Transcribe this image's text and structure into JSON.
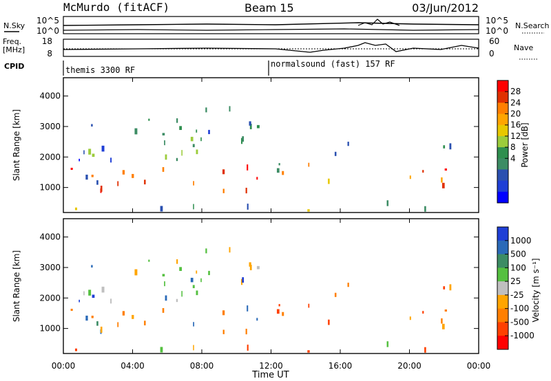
{
  "header": {
    "station": "McMurdo (fitACF)",
    "beam": "Beam 15",
    "date": "03/Jun/2012"
  },
  "noise_panel": {
    "left_label": "N.Sky",
    "right_label": "N.Search",
    "left_ticks": [
      "10^5",
      "10^0"
    ],
    "right_ticks": [
      "10^5",
      "10^0"
    ]
  },
  "freq_panel": {
    "left_label_line1": "Freq.",
    "left_label_line2": "[MHz]",
    "right_label": "Nave",
    "left_ticks": [
      "18",
      "8"
    ],
    "right_ticks": [
      "60",
      "0"
    ]
  },
  "cpid": {
    "label": "CPID",
    "segments": [
      {
        "text": "themis 3300 RF",
        "start_hour": 0
      },
      {
        "text": "normalsound (fast) 157 RF",
        "start_hour": 12
      }
    ]
  },
  "time_axis": {
    "label": "Time UT",
    "ticks": [
      "00:00",
      "04:00",
      "08:00",
      "12:00",
      "16:00",
      "20:00",
      "00:00"
    ],
    "tick_hours": [
      0,
      4,
      8,
      12,
      16,
      20,
      24
    ]
  },
  "chart_data": [
    {
      "type": "heatmap",
      "title": "",
      "xlabel": "Time UT",
      "ylabel": "Slant Range [km]",
      "xlim_hours": [
        0,
        24
      ],
      "ylim": [
        180,
        4600
      ],
      "yticks": [
        "1000",
        "2000",
        "3000",
        "4000"
      ],
      "colorbar": {
        "label": "Power [dB]",
        "ticks": [
          "28",
          "24",
          "20",
          "16",
          "12",
          "8",
          "4"
        ],
        "colors": [
          "#ff0000",
          "#e03000",
          "#ff7f00",
          "#ffa500",
          "#e8c800",
          "#9ccc3c",
          "#2f8f4f",
          "#3c8c64",
          "#2a50b0",
          "#1f3fd6",
          "#0000ff"
        ]
      }
    },
    {
      "type": "heatmap",
      "title": "",
      "xlabel": "Time UT",
      "ylabel": "Slant Range [km]",
      "xlim_hours": [
        0,
        24
      ],
      "ylim": [
        180,
        4600
      ],
      "yticks": [
        "1000",
        "2000",
        "3000",
        "4000"
      ],
      "colorbar": {
        "label": "Velocity [m s⁻¹]",
        "ticks": [
          "1000",
          "500",
          "100",
          "25",
          "-25",
          "-100",
          "-500",
          "-1000"
        ],
        "colors": [
          "#1f3fd6",
          "#2a6ab8",
          "#3c8c64",
          "#55c040",
          "#bfbfbf",
          "#ffa500",
          "#ff7f00",
          "#ff4000",
          "#ff0000"
        ]
      }
    }
  ]
}
